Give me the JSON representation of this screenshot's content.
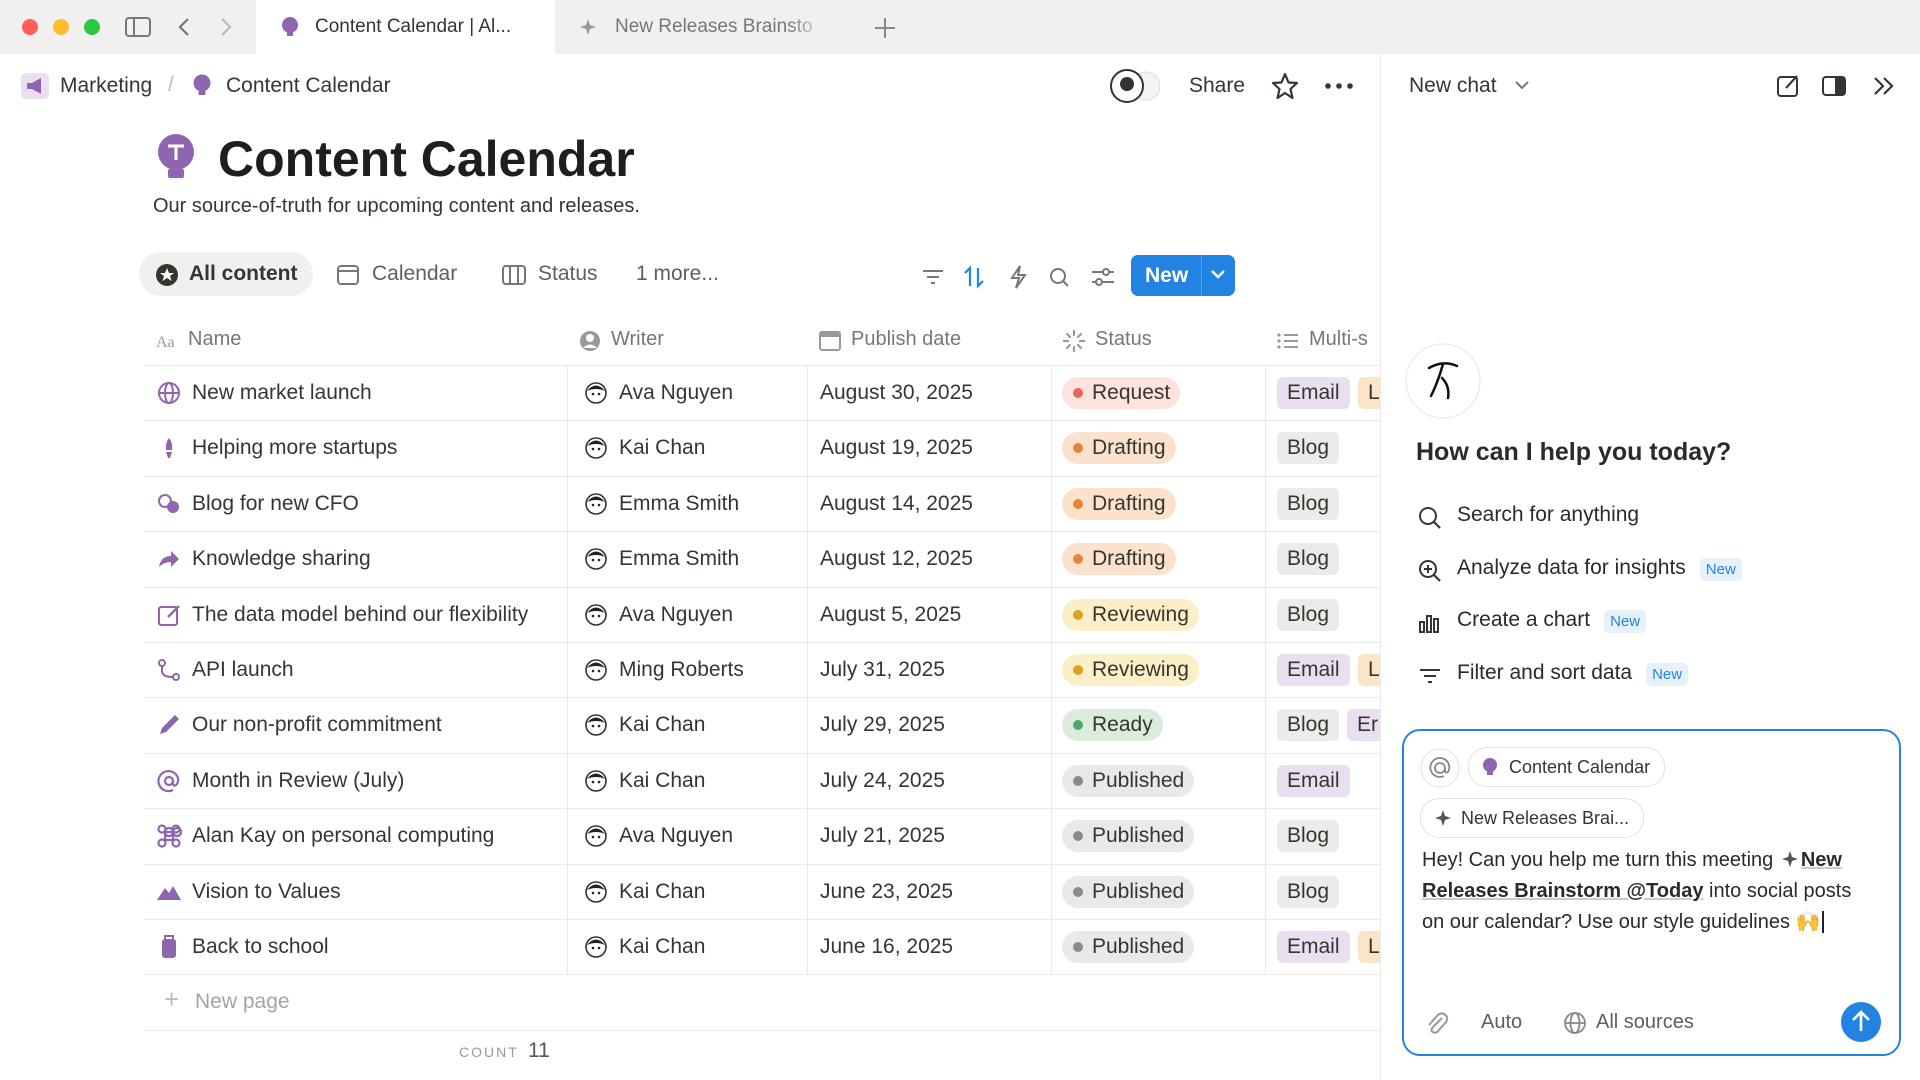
{
  "tabs": [
    {
      "label": "Content Calendar | Al..."
    },
    {
      "label": "New Releases Brainsto"
    }
  ],
  "breadcrumb": [
    "Marketing",
    "Content Calendar"
  ],
  "topbar": {
    "share": "Share"
  },
  "page": {
    "title": "Content Calendar",
    "subtitle": "Our source-of-truth for upcoming content and releases."
  },
  "views": [
    "All content",
    "Calendar",
    "Status",
    "1 more..."
  ],
  "new_button": "New",
  "table": {
    "columns": [
      "Name",
      "Writer",
      "Publish date",
      "Status",
      "Multi-s"
    ],
    "rows": [
      {
        "name": "New market launch",
        "writer": "Ava Nguyen",
        "date": "August 30, 2025",
        "status": {
          "label": "Request",
          "dot": "#e0685c",
          "bg": "#fde2dd"
        },
        "tags": [
          {
            "label": "Email",
            "bg": "#eadff0"
          },
          {
            "label": "L",
            "bg": "#fbe4c8"
          }
        ]
      },
      {
        "name": "Helping more startups",
        "writer": "Kai Chan",
        "date": "August 19, 2025",
        "status": {
          "label": "Drafting",
          "dot": "#e8833a",
          "bg": "#fbe2cd"
        },
        "tags": [
          {
            "label": "Blog",
            "bg": "#ebebe9"
          }
        ]
      },
      {
        "name": "Blog for new CFO",
        "writer": "Emma Smith",
        "date": "August 14, 2025",
        "status": {
          "label": "Drafting",
          "dot": "#e8833a",
          "bg": "#fbe2cd"
        },
        "tags": [
          {
            "label": "Blog",
            "bg": "#ebebe9"
          }
        ]
      },
      {
        "name": "Knowledge sharing",
        "writer": "Emma Smith",
        "date": "August 12, 2025",
        "status": {
          "label": "Drafting",
          "dot": "#e8833a",
          "bg": "#fbe2cd"
        },
        "tags": [
          {
            "label": "Blog",
            "bg": "#ebebe9"
          }
        ]
      },
      {
        "name": "The data model behind our flexibility",
        "writer": "Ava Nguyen",
        "date": "August 5, 2025",
        "status": {
          "label": "Reviewing",
          "dot": "#dea021",
          "bg": "#fbefc7"
        },
        "tags": [
          {
            "label": "Blog",
            "bg": "#ebebe9"
          }
        ]
      },
      {
        "name": "API launch",
        "writer": "Ming Roberts",
        "date": "July 31, 2025",
        "status": {
          "label": "Reviewing",
          "dot": "#dea021",
          "bg": "#fbefc7"
        },
        "tags": [
          {
            "label": "Email",
            "bg": "#eadff0"
          },
          {
            "label": "L",
            "bg": "#fbe4c8"
          }
        ]
      },
      {
        "name": "Our non-profit commitment",
        "writer": "Kai Chan",
        "date": "July 29, 2025",
        "status": {
          "label": "Ready",
          "dot": "#4aa866",
          "bg": "#dcecdc"
        },
        "tags": [
          {
            "label": "Blog",
            "bg": "#ebebe9"
          },
          {
            "label": "Er",
            "bg": "#eadff0"
          }
        ]
      },
      {
        "name": "Month in Review (July)",
        "writer": "Kai Chan",
        "date": "July 24, 2025",
        "status": {
          "label": "Published",
          "dot": "#8a8a86",
          "bg": "#e9e9e7"
        },
        "tags": [
          {
            "label": "Email",
            "bg": "#eadff0"
          }
        ]
      },
      {
        "name": "Alan Kay on personal computing",
        "writer": "Ava Nguyen",
        "date": "July 21, 2025",
        "status": {
          "label": "Published",
          "dot": "#8a8a86",
          "bg": "#e9e9e7"
        },
        "tags": [
          {
            "label": "Blog",
            "bg": "#ebebe9"
          }
        ]
      },
      {
        "name": "Vision to Values",
        "writer": "Kai Chan",
        "date": "June 23, 2025",
        "status": {
          "label": "Published",
          "dot": "#8a8a86",
          "bg": "#e9e9e7"
        },
        "tags": [
          {
            "label": "Blog",
            "bg": "#ebebe9"
          }
        ]
      },
      {
        "name": "Back to school",
        "writer": "Kai Chan",
        "date": "June 16, 2025",
        "status": {
          "label": "Published",
          "dot": "#8a8a86",
          "bg": "#e9e9e7"
        },
        "tags": [
          {
            "label": "Email",
            "bg": "#eadff0"
          },
          {
            "label": "L",
            "bg": "#fbe4c8"
          }
        ]
      }
    ],
    "new_page": "New page",
    "count_label": "COUNT",
    "count": "11"
  },
  "chat": {
    "header": "New chat",
    "greeting": "How can I help you today?",
    "options": [
      {
        "label": "Search for anything"
      },
      {
        "label": "Analyze data for insights",
        "badge": "New"
      },
      {
        "label": "Create a chart",
        "badge": "New"
      },
      {
        "label": "Filter and sort data",
        "badge": "New"
      }
    ],
    "chips": [
      "Content Calendar",
      "New Releases Brai..."
    ],
    "message": {
      "before": "Hey! Can you help me turn this meeting ",
      "mention": "New Releases Brainstorm @Today",
      "after": " into social posts on our calendar? Use our style guidelines 🙌"
    },
    "mode": "Auto",
    "sources": "All sources"
  }
}
